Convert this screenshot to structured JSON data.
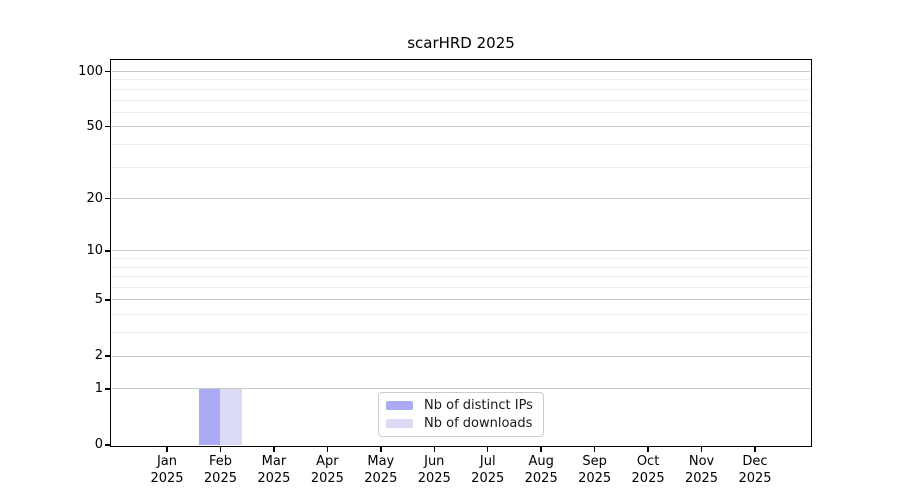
{
  "chart_data": {
    "type": "bar",
    "title": "scarHRD 2025",
    "categories": [
      "Jan 2025",
      "Feb 2025",
      "Mar 2025",
      "Apr 2025",
      "May 2025",
      "Jun 2025",
      "Jul 2025",
      "Aug 2025",
      "Sep 2025",
      "Oct 2025",
      "Nov 2025",
      "Dec 2025"
    ],
    "series": [
      {
        "name": "Nb of distinct IPs",
        "color": "#aaaaf5",
        "values": [
          0,
          1,
          0,
          0,
          0,
          0,
          0,
          0,
          0,
          0,
          0,
          0
        ]
      },
      {
        "name": "Nb of downloads",
        "color": "#dbdbf8",
        "values": [
          0,
          1,
          0,
          0,
          0,
          0,
          0,
          0,
          0,
          0,
          0,
          0
        ]
      }
    ],
    "xlabel": "",
    "ylabel": "",
    "yscale": "log1p",
    "ylim": [
      0,
      114
    ],
    "yticks": [
      0,
      1,
      2,
      5,
      10,
      20,
      50,
      100
    ],
    "minor_yticks": [
      3,
      4,
      6,
      7,
      8,
      9,
      30,
      40,
      60,
      70,
      80,
      90
    ],
    "grid": true,
    "legend_position": "bottom-center"
  },
  "colors": {
    "major_grid": "#c9c9c9",
    "minor_grid": "#ececec",
    "axis": "#000000",
    "background": "#ffffff",
    "legend_border": "#cccccc",
    "distinct_ips_bar": "#aaaaf5",
    "downloads_bar": "#dbdbf8"
  }
}
